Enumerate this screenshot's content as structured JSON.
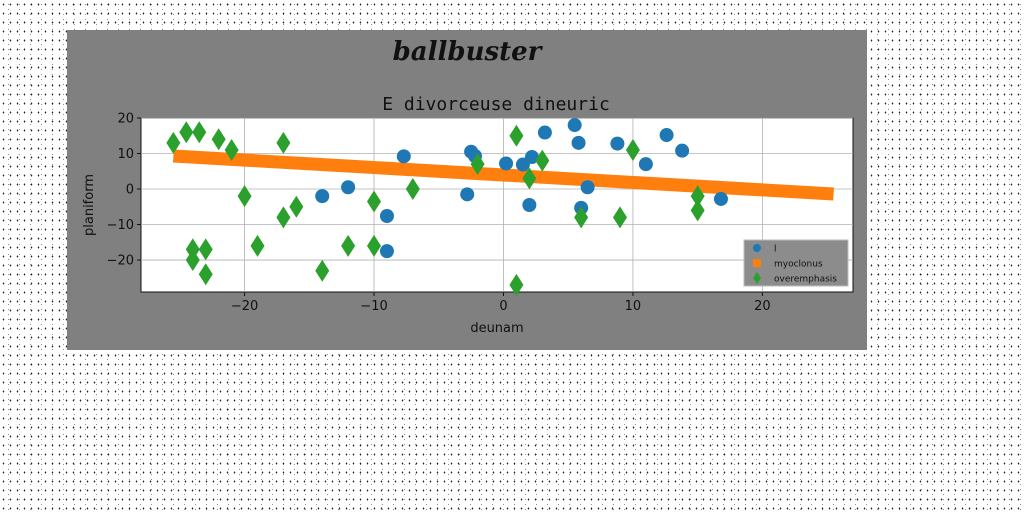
{
  "figure": {
    "decorative_title": "ballbuster",
    "panel_color": "#808080",
    "background_color": "#ffffff"
  },
  "chart_data": {
    "type": "scatter",
    "title": "E divorceuse dineuric",
    "xlabel": "deunam",
    "ylabel": "planiform",
    "xlim": [
      -28,
      27
    ],
    "ylim": [
      -29,
      20
    ],
    "xticks": [
      -20,
      -10,
      0,
      10,
      20
    ],
    "yticks": [
      -20,
      -10,
      0,
      10,
      20
    ],
    "xtick_labels": [
      "−20",
      "−10",
      "0",
      "10",
      "20"
    ],
    "ytick_labels": [
      "−20",
      "−10",
      "0",
      "10",
      "20"
    ],
    "grid": true,
    "legend_position": "lower-right",
    "series": [
      {
        "name": "l",
        "kind": "scatter",
        "marker": "circle",
        "color": "#1f77b4",
        "x": [
          -14.0,
          -12.0,
          -9.0,
          -9.0,
          -7.7,
          -2.8,
          -2.5,
          -2.2,
          0.2,
          1.5,
          2.0,
          2.2,
          3.2,
          5.5,
          5.8,
          6.0,
          6.5,
          8.8,
          11.0,
          12.6,
          13.8,
          16.8
        ],
        "y": [
          -2.0,
          0.5,
          -17.5,
          -7.6,
          9.2,
          -1.5,
          10.5,
          9.3,
          7.2,
          6.9,
          -4.5,
          9.0,
          15.9,
          18.0,
          13.0,
          -5.3,
          0.5,
          12.8,
          7.0,
          15.2,
          10.8,
          -2.8
        ]
      },
      {
        "name": "myoclonus",
        "kind": "line",
        "marker": "square",
        "color": "#ff7f0e",
        "x": [
          -25.5,
          25.5
        ],
        "y": [
          9.3,
          -1.4
        ]
      },
      {
        "name": "overemphasis",
        "kind": "scatter",
        "marker": "diamond",
        "color": "#2ca02c",
        "x": [
          -25.5,
          -24.5,
          -23.5,
          -24.0,
          -24.0,
          -23.0,
          -23.0,
          -22.0,
          -21.0,
          -20.0,
          -19.0,
          -17.0,
          -17.0,
          -16.0,
          -14.0,
          -12.0,
          -10.0,
          -10.0,
          -7.0,
          -2.0,
          1.0,
          1.0,
          2.0,
          3.0,
          6.0,
          9.0,
          10.0,
          15.0,
          15.0
        ],
        "y": [
          13.0,
          16.0,
          16.0,
          -17.0,
          -20.0,
          -17.0,
          -24.0,
          14.0,
          11.0,
          -2.0,
          -16.0,
          -8.0,
          13.0,
          -5.0,
          -23.0,
          -16.0,
          -3.5,
          -16.0,
          0.0,
          7.0,
          15.0,
          -27.0,
          3.0,
          8.0,
          -8.0,
          -8.0,
          11.0,
          -6.0,
          -2.0
        ]
      }
    ]
  }
}
